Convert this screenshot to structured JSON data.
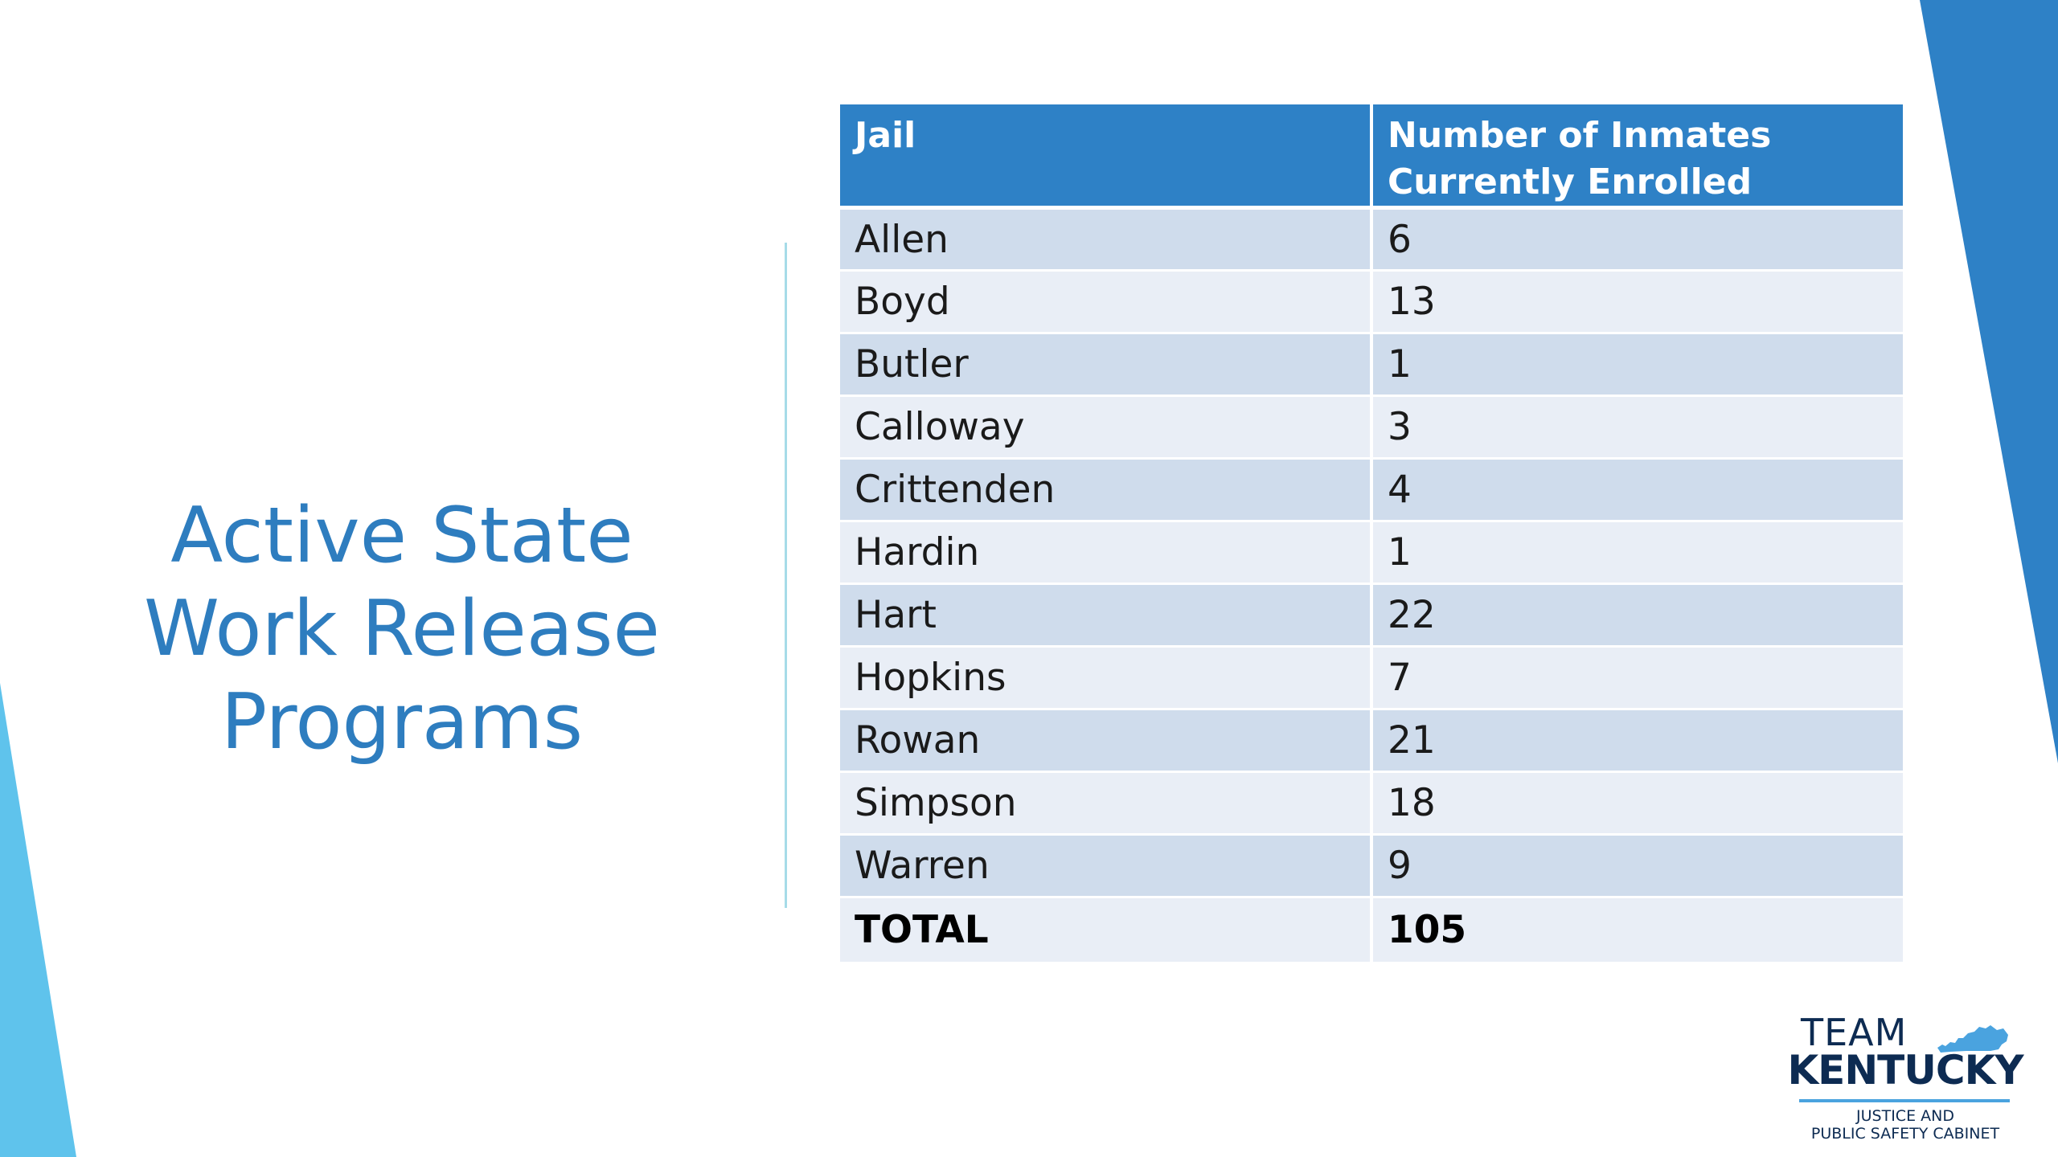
{
  "slide": {
    "title_lines": [
      "Active State",
      "Work Release",
      "Programs"
    ]
  },
  "table": {
    "headers": [
      "Jail",
      "Number of Inmates Currently Enrolled"
    ],
    "rows": [
      {
        "jail": "Allen",
        "count": "6"
      },
      {
        "jail": "Boyd",
        "count": "13"
      },
      {
        "jail": "Butler",
        "count": "1"
      },
      {
        "jail": "Calloway",
        "count": "3"
      },
      {
        "jail": "Crittenden",
        "count": "4"
      },
      {
        "jail": "Hardin",
        "count": "1"
      },
      {
        "jail": "Hart",
        "count": "22"
      },
      {
        "jail": "Hopkins",
        "count": "7"
      },
      {
        "jail": "Rowan",
        "count": "21"
      },
      {
        "jail": "Simpson",
        "count": "18"
      },
      {
        "jail": "Warren",
        "count": "9"
      }
    ],
    "total": {
      "label": "TOTAL",
      "count": "105"
    }
  },
  "logo": {
    "team": "TEAM",
    "name": "KENTUCKY",
    "subtitle_lines": [
      "JUSTICE AND",
      "PUBLIC SAFETY CABINET"
    ],
    "icon": "kentucky-state-icon"
  },
  "colors": {
    "accent_blue": "#2e81c6",
    "title_blue": "#2e7dbf",
    "row_dark": "#cfdcec",
    "row_light": "#e9eef6",
    "light_blue_shape": "#5fc3ec",
    "divider": "#a6dbe8",
    "logo_navy": "#0d2b52"
  }
}
